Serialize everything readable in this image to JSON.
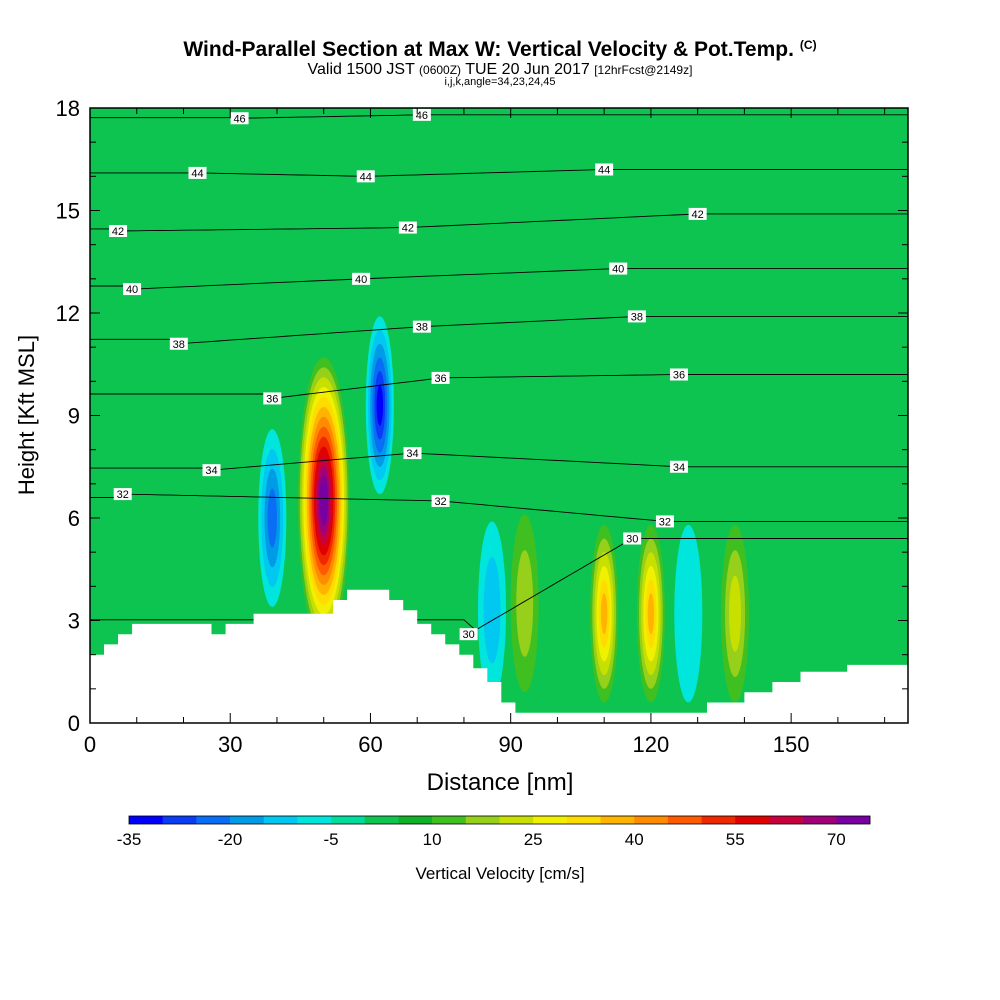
{
  "title": {
    "main": "Wind-Parallel Section at Max W: Vertical Velocity & Pot.Temp.",
    "mark": "(C)",
    "valid_prefix": "Valid 1500 JST",
    "valid_utc": "(0600Z)",
    "valid_date": "TUE 20 Jun 2017",
    "forecast": "[12hrFcst@2149z]",
    "grid_info": "i,j,k,angle=34,23,24,45"
  },
  "colors": {
    "background_field": "#0dc451",
    "terrain": "#ffffff",
    "contour_line": "#000000"
  },
  "chart_data": {
    "type": "heatmap",
    "xlabel": "Distance [nm]",
    "ylabel": "Height [Kft MSL]",
    "xlim": [
      0,
      175
    ],
    "ylim": [
      0,
      18
    ],
    "x_ticks": [
      0,
      30,
      60,
      90,
      120,
      150
    ],
    "y_ticks": [
      0,
      3,
      6,
      9,
      12,
      15,
      18
    ],
    "fill_variable": "Vertical Velocity [cm/s]",
    "colorbar": {
      "label": "Vertical Velocity [cm/s]",
      "tick_labels": [
        "-35",
        "-20",
        "-5",
        "10",
        "25",
        "40",
        "55",
        "70"
      ],
      "tick_values": [
        -35,
        -20,
        -5,
        10,
        25,
        40,
        55,
        70
      ],
      "min": -35,
      "step": 5,
      "colors": [
        "#0000ff",
        "#0a3cf5",
        "#0a6ef5",
        "#009be6",
        "#00c8f0",
        "#00e6dc",
        "#00dc9b",
        "#10c450",
        "#11b028",
        "#40c020",
        "#96d01a",
        "#c8e000",
        "#f0f000",
        "#ffdc00",
        "#ffb400",
        "#ff8c00",
        "#ff5a00",
        "#f02800",
        "#e00000",
        "#c8003c",
        "#a00078",
        "#7800a0"
      ]
    },
    "terrain": [
      [
        0,
        2.0
      ],
      [
        3,
        2.0
      ],
      [
        3,
        2.3
      ],
      [
        6,
        2.3
      ],
      [
        6,
        2.6
      ],
      [
        9,
        2.6
      ],
      [
        9,
        2.9
      ],
      [
        26,
        2.9
      ],
      [
        26,
        2.6
      ],
      [
        29,
        2.6
      ],
      [
        29,
        2.9
      ],
      [
        35,
        2.9
      ],
      [
        35,
        3.2
      ],
      [
        52,
        3.2
      ],
      [
        52,
        3.6
      ],
      [
        55,
        3.6
      ],
      [
        55,
        3.9
      ],
      [
        64,
        3.9
      ],
      [
        64,
        3.6
      ],
      [
        67,
        3.6
      ],
      [
        67,
        3.3
      ],
      [
        70,
        3.3
      ],
      [
        70,
        2.9
      ],
      [
        73,
        2.9
      ],
      [
        73,
        2.6
      ],
      [
        76,
        2.6
      ],
      [
        76,
        2.3
      ],
      [
        79,
        2.3
      ],
      [
        79,
        2.0
      ],
      [
        82,
        2.0
      ],
      [
        82,
        1.6
      ],
      [
        85,
        1.6
      ],
      [
        85,
        1.2
      ],
      [
        88,
        1.2
      ],
      [
        88,
        0.9
      ],
      [
        88,
        0.6
      ],
      [
        91,
        0.6
      ],
      [
        91,
        0.3
      ],
      [
        132,
        0.3
      ],
      [
        132,
        0.6
      ],
      [
        140,
        0.6
      ],
      [
        140,
        0.9
      ],
      [
        146,
        0.9
      ],
      [
        146,
        1.2
      ],
      [
        152,
        1.2
      ],
      [
        152,
        1.5
      ],
      [
        162,
        1.5
      ],
      [
        162,
        1.7
      ],
      [
        175,
        1.7
      ]
    ],
    "updraft_cores": [
      {
        "x": 50,
        "height": 6.5,
        "peak": 78
      },
      {
        "x": 110,
        "height": 3.2,
        "peak": 35
      },
      {
        "x": 120,
        "height": 3.2,
        "peak": 38
      },
      {
        "x": 93,
        "height": 3.5,
        "peak": 18
      },
      {
        "x": 138,
        "height": 3.2,
        "peak": 22
      }
    ],
    "downdraft_cores": [
      {
        "x": 39,
        "height": 6.0,
        "peak": -20
      },
      {
        "x": 62,
        "height": 9.3,
        "peak": -30
      },
      {
        "x": 128,
        "height": 3.2,
        "peak": -8
      },
      {
        "x": 86,
        "height": 3.3,
        "peak": -10
      }
    ],
    "theta_contours": {
      "variable": "Potential Temperature",
      "levels": [
        30,
        32,
        34,
        36,
        38,
        40,
        42,
        44,
        46
      ],
      "labels": [
        {
          "text": "46",
          "x": 32,
          "y": 17.7
        },
        {
          "text": "46",
          "x": 71,
          "y": 17.8
        },
        {
          "text": "44",
          "x": 23,
          "y": 16.1
        },
        {
          "text": "44",
          "x": 59,
          "y": 16.0
        },
        {
          "text": "44",
          "x": 110,
          "y": 16.2
        },
        {
          "text": "42",
          "x": 6,
          "y": 14.4
        },
        {
          "text": "42",
          "x": 68,
          "y": 14.5
        },
        {
          "text": "42",
          "x": 130,
          "y": 14.9
        },
        {
          "text": "40",
          "x": 9,
          "y": 12.7
        },
        {
          "text": "40",
          "x": 58,
          "y": 13.0
        },
        {
          "text": "40",
          "x": 113,
          "y": 13.3
        },
        {
          "text": "38",
          "x": 19,
          "y": 11.1
        },
        {
          "text": "38",
          "x": 71,
          "y": 11.6
        },
        {
          "text": "38",
          "x": 117,
          "y": 11.9
        },
        {
          "text": "36",
          "x": 39,
          "y": 9.5
        },
        {
          "text": "36",
          "x": 75,
          "y": 10.1
        },
        {
          "text": "36",
          "x": 126,
          "y": 10.2
        },
        {
          "text": "34",
          "x": 26,
          "y": 7.4
        },
        {
          "text": "34",
          "x": 69,
          "y": 7.9
        },
        {
          "text": "34",
          "x": 126,
          "y": 7.5
        },
        {
          "text": "32",
          "x": 7,
          "y": 6.7
        },
        {
          "text": "32",
          "x": 75,
          "y": 6.5
        },
        {
          "text": "32",
          "x": 123,
          "y": 5.9
        },
        {
          "text": "30",
          "x": 116,
          "y": 5.4
        },
        {
          "text": "30",
          "x": 81,
          "y": 2.6
        }
      ]
    }
  }
}
